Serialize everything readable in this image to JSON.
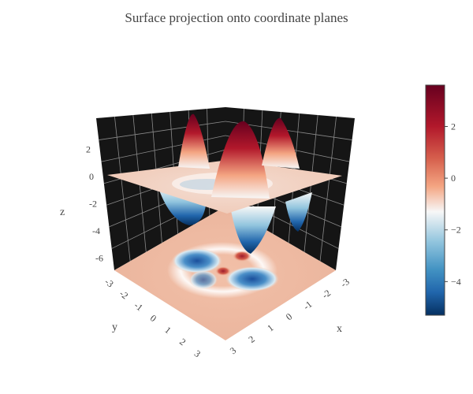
{
  "chart_data": {
    "type": "surface",
    "title": "Surface projection onto coordinate planes",
    "scene": {
      "background": "#151515",
      "grid_color": "#8a8a8a",
      "x_axis": {
        "title": "x",
        "range": [
          -3,
          3
        ],
        "tick_labels": [
          "-3",
          "-2",
          "-1",
          "0",
          "1",
          "2",
          "3"
        ]
      },
      "y_axis": {
        "title": "y",
        "range": [
          -3,
          3
        ],
        "tick_labels": [
          "-3",
          "-2",
          "-1",
          "0",
          "1",
          "2",
          "3"
        ]
      },
      "z_axis": {
        "title": "z",
        "range": [
          -7,
          4
        ],
        "tick_labels": [
          "2",
          "0",
          "-2",
          "-4",
          "-6"
        ]
      }
    },
    "projection_plane_z": 0,
    "floor_projection_z": -7,
    "surface_range": {
      "z_min": -5.3,
      "z_max": 3.6
    },
    "peaks": [
      {
        "x": -1.6,
        "y": 1.4,
        "z": 3.2
      },
      {
        "x": 0.0,
        "y": -0.3,
        "z": 3.6
      },
      {
        "x": 1.6,
        "y": 1.4,
        "z": 3.1
      }
    ],
    "troughs": [
      {
        "x": -1.7,
        "y": -1.2,
        "z": -4.6
      },
      {
        "x": 1.8,
        "y": -1.3,
        "z": -4.8
      },
      {
        "x": 0.3,
        "y": -2.6,
        "z": -5.3
      }
    ],
    "colorscale": "RdBu (reversed)",
    "colorbar": {
      "range": [
        -5.3,
        3.6
      ],
      "tick_labels": [
        "2",
        "0",
        "−2",
        "−4"
      ],
      "tick_values": [
        2,
        0,
        -2,
        -4
      ]
    }
  }
}
